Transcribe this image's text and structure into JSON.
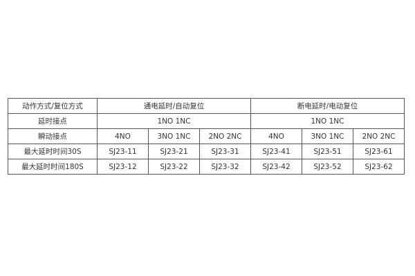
{
  "table": {
    "header": {
      "label": "动作方式/复位方式",
      "groups": [
        "通电延时/自动复位",
        "断电延时/电动复位"
      ]
    },
    "delay_contact": {
      "label": "延时接点",
      "values": [
        "1NO 1NC",
        "1NO 1NC"
      ]
    },
    "instant_contact": {
      "label": "瞬动接点",
      "values": [
        "4NO",
        "3NO 1NC",
        "2NO 2NC",
        "4NO",
        "3NO 1NC",
        "2NO 2NC"
      ]
    },
    "rows": [
      {
        "label": "最大延时时间30S",
        "values": [
          "SJ23-11",
          "SJ23-21",
          "SJ23-31",
          "SJ23-41",
          "SJ23-51",
          "SJ23-61"
        ]
      },
      {
        "label": "最大延时时间180S",
        "values": [
          "SJ23-12",
          "SJ23-22",
          "SJ23-32",
          "SJ23-42",
          "SJ23-52",
          "SJ23-62"
        ]
      }
    ]
  }
}
